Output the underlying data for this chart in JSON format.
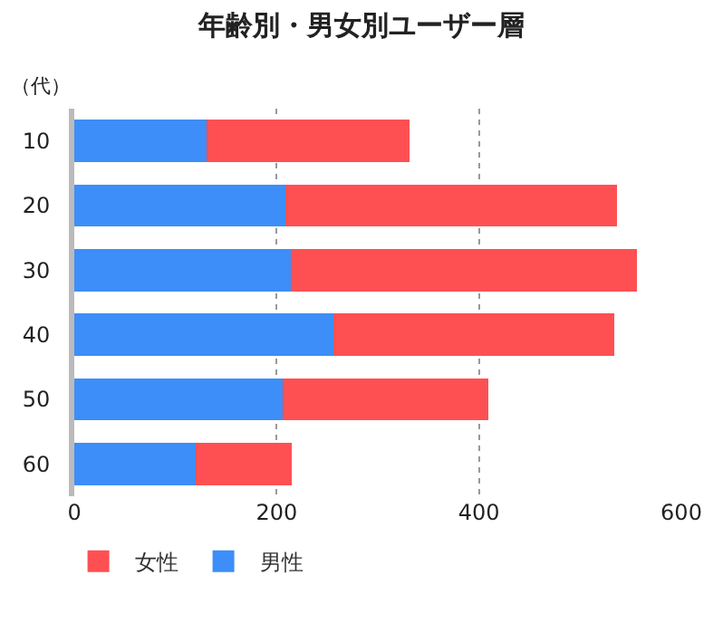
{
  "chart_data": {
    "type": "bar",
    "orientation": "horizontal",
    "stacked": true,
    "title": "年齢別・男女別ユーザー層",
    "ylabel": "（代）",
    "categories": [
      "10",
      "20",
      "30",
      "40",
      "50",
      "60"
    ],
    "series": [
      {
        "name": "男性",
        "color": "#3d8ef8",
        "values": [
          131,
          209,
          214,
          256,
          206,
          120
        ]
      },
      {
        "name": "女性",
        "color": "#fe5052",
        "values": [
          200,
          327,
          342,
          278,
          203,
          95
        ]
      }
    ],
    "xlim": [
      0,
      600
    ],
    "xticks": [
      0,
      200,
      400,
      600
    ],
    "grid": "x",
    "legend": "bottom left"
  }
}
